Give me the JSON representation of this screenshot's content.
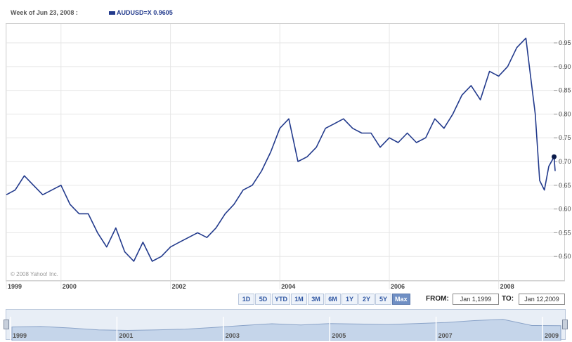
{
  "header": {
    "week_label": "Week of Jun 23, 2008 :",
    "series_label": "AUDUSD=X  0.9605",
    "series_color": "#223a8c"
  },
  "copyright": "© 2008 Yahoo! Inc.",
  "range_buttons": [
    {
      "label": "1D",
      "active": false
    },
    {
      "label": "5D",
      "active": false
    },
    {
      "label": "YTD",
      "active": false
    },
    {
      "label": "1M",
      "active": false
    },
    {
      "label": "3M",
      "active": false
    },
    {
      "label": "6M",
      "active": false
    },
    {
      "label": "1Y",
      "active": false
    },
    {
      "label": "2Y",
      "active": false
    },
    {
      "label": "5Y",
      "active": false
    },
    {
      "label": "Max",
      "active": true
    }
  ],
  "date_range": {
    "from_label": "FROM:",
    "from_value": "Jan 1,1999",
    "to_label": "TO:",
    "to_value": "Jan 12,2009"
  },
  "navigator": {
    "labels": [
      "1999",
      "2001",
      "2003",
      "2005",
      "2007",
      "2009"
    ]
  },
  "chart_data": {
    "type": "line",
    "title": "",
    "xlabel": "",
    "ylabel": "",
    "x_ticks": [
      "1999",
      "2000",
      "2002",
      "2004",
      "2006",
      "2008"
    ],
    "y_ticks": [
      "0.95",
      "0.90",
      "0.85",
      "0.80",
      "0.75",
      "0.70",
      "0.65",
      "0.60",
      "0.55",
      "0.50"
    ],
    "ylim": [
      0.45,
      0.99
    ],
    "xlim": [
      "1999-01-01",
      "2009-01-12"
    ],
    "grid": true,
    "highlight_point": {
      "x": "2009-01-05",
      "y": 0.71
    },
    "series": [
      {
        "name": "AUDUSD=X",
        "color": "#223a8c",
        "x": [
          "1999-01-01",
          "1999-03-01",
          "1999-05-01",
          "1999-07-01",
          "1999-09-01",
          "1999-11-01",
          "2000-01-01",
          "2000-03-01",
          "2000-05-01",
          "2000-07-01",
          "2000-09-01",
          "2000-11-01",
          "2001-01-01",
          "2001-03-01",
          "2001-05-01",
          "2001-07-01",
          "2001-09-01",
          "2001-11-01",
          "2002-01-01",
          "2002-03-01",
          "2002-05-01",
          "2002-07-01",
          "2002-09-01",
          "2002-11-01",
          "2003-01-01",
          "2003-03-01",
          "2003-05-01",
          "2003-07-01",
          "2003-09-01",
          "2003-11-01",
          "2004-01-01",
          "2004-03-01",
          "2004-05-01",
          "2004-07-01",
          "2004-09-01",
          "2004-11-01",
          "2005-01-01",
          "2005-03-01",
          "2005-05-01",
          "2005-07-01",
          "2005-09-01",
          "2005-11-01",
          "2006-01-01",
          "2006-03-01",
          "2006-05-01",
          "2006-07-01",
          "2006-09-01",
          "2006-11-01",
          "2007-01-01",
          "2007-03-01",
          "2007-05-01",
          "2007-07-01",
          "2007-09-01",
          "2007-11-01",
          "2008-01-01",
          "2008-03-01",
          "2008-05-01",
          "2008-07-01",
          "2008-08-01",
          "2008-09-01",
          "2008-10-01",
          "2008-11-01",
          "2008-12-01",
          "2009-01-05",
          "2009-01-12"
        ],
        "values": [
          0.63,
          0.64,
          0.67,
          0.65,
          0.63,
          0.64,
          0.65,
          0.61,
          0.59,
          0.59,
          0.55,
          0.52,
          0.56,
          0.51,
          0.49,
          0.53,
          0.49,
          0.5,
          0.52,
          0.53,
          0.54,
          0.55,
          0.54,
          0.56,
          0.59,
          0.61,
          0.64,
          0.65,
          0.68,
          0.72,
          0.77,
          0.79,
          0.7,
          0.71,
          0.73,
          0.77,
          0.78,
          0.79,
          0.77,
          0.76,
          0.76,
          0.73,
          0.75,
          0.74,
          0.76,
          0.74,
          0.75,
          0.79,
          0.77,
          0.8,
          0.84,
          0.86,
          0.83,
          0.89,
          0.88,
          0.9,
          0.94,
          0.96,
          0.88,
          0.8,
          0.66,
          0.64,
          0.69,
          0.71,
          0.68
        ]
      }
    ],
    "navigator_series": {
      "values": [
        0.64,
        0.66,
        0.6,
        0.52,
        0.5,
        0.52,
        0.55,
        0.62,
        0.7,
        0.77,
        0.72,
        0.78,
        0.76,
        0.74,
        0.78,
        0.82,
        0.9,
        0.95,
        0.7,
        0.69
      ]
    }
  }
}
